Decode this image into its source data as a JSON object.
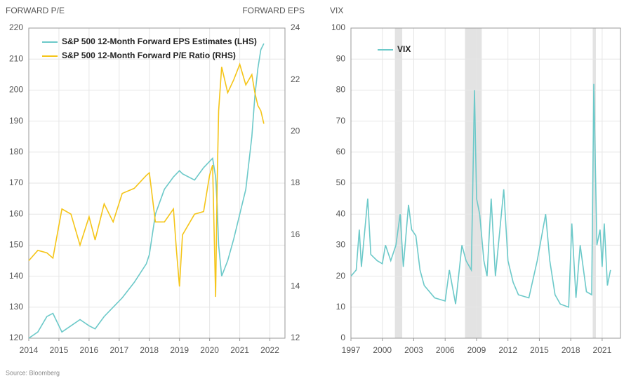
{
  "source": "Source: Bloomberg",
  "chart_data": [
    {
      "type": "line",
      "y_label": "FORWARD P/E",
      "y2_label": "FORWARD EPS",
      "grid": true,
      "legend": "upper left",
      "x": [
        2014,
        2014.3,
        2014.6,
        2014.8,
        2015.1,
        2015.4,
        2015.7,
        2016.0,
        2016.2,
        2016.5,
        2016.8,
        2017.1,
        2017.5,
        2017.9,
        2018.0,
        2018.2,
        2018.5,
        2018.8,
        2018.9,
        2019.0,
        2019.1,
        2019.5,
        2019.8,
        2020.0,
        2020.1,
        2020.2,
        2020.25,
        2020.3,
        2020.4,
        2020.6,
        2020.8,
        2021.0,
        2021.2,
        2021.4,
        2021.5,
        2021.6,
        2021.7,
        2021.8
      ],
      "series": [
        {
          "name": "S&P 500 12-Month Forward EPS Estimates (LHS)",
          "color": "#6cc9c9",
          "values": [
            120,
            122,
            127,
            128,
            122,
            124,
            126,
            124,
            123,
            127,
            130,
            133,
            138,
            144,
            147,
            160,
            168,
            172,
            173,
            174,
            173,
            171,
            175,
            177,
            178,
            172,
            163,
            150,
            140,
            145,
            152,
            160,
            168,
            185,
            198,
            207,
            213,
            215
          ]
        },
        {
          "name": "S&P 500 12-Month Forward P/E Ratio (RHS)",
          "color": "#f5c518",
          "axis": "y2",
          "values": [
            15.0,
            15.4,
            15.3,
            15.1,
            17.0,
            16.8,
            15.6,
            16.7,
            15.8,
            17.2,
            16.5,
            17.6,
            17.8,
            18.3,
            18.4,
            16.5,
            16.5,
            17.0,
            15.4,
            14.0,
            16.0,
            16.8,
            16.9,
            18.3,
            18.7,
            13.6,
            18.0,
            20.8,
            22.5,
            21.5,
            22.0,
            22.6,
            21.8,
            22.2,
            21.5,
            21.0,
            20.8,
            20.3
          ]
        }
      ],
      "xlim": [
        2014,
        2022.5
      ],
      "xticks": [
        2014,
        2015,
        2016,
        2017,
        2018,
        2019,
        2020,
        2021,
        2022
      ],
      "ylim": [
        120,
        220
      ],
      "yticks": [
        120,
        130,
        140,
        150,
        160,
        170,
        180,
        190,
        200,
        210,
        220
      ],
      "y2lim": [
        12,
        24
      ],
      "y2ticks": [
        12,
        14,
        16,
        18,
        20,
        22,
        24
      ]
    },
    {
      "type": "line",
      "y_label": "VIX",
      "grid": true,
      "legend": "upper left",
      "shaded_ranges": [
        [
          2001.2,
          2001.9
        ],
        [
          2007.9,
          2009.5
        ],
        [
          2020.1,
          2020.4
        ]
      ],
      "shade_color": "#e3e3e3",
      "x": [
        1997,
        1997.5,
        1997.8,
        1998.0,
        1998.6,
        1998.9,
        1999.5,
        2000.0,
        2000.3,
        2000.8,
        2001.3,
        2001.7,
        2002.0,
        2002.5,
        2002.8,
        2003.2,
        2003.6,
        2004,
        2005,
        2006,
        2006.4,
        2007,
        2007.6,
        2008,
        2008.5,
        2008.8,
        2009.0,
        2009.3,
        2009.7,
        2010.0,
        2010.4,
        2010.8,
        2011.6,
        2012,
        2012.5,
        2013,
        2014,
        2014.8,
        2015.6,
        2016,
        2016.5,
        2017,
        2017.8,
        2018.1,
        2018.5,
        2018.9,
        2019.5,
        2020.0,
        2020.2,
        2020.5,
        2020.8,
        2021.0,
        2021.2,
        2021.5,
        2021.8
      ],
      "series": [
        {
          "name": "VIX",
          "color": "#6cc9c9",
          "values": [
            20,
            22,
            35,
            23,
            45,
            27,
            25,
            24,
            30,
            25,
            30,
            40,
            23,
            43,
            35,
            33,
            22,
            17,
            13,
            12,
            22,
            11,
            30,
            25,
            22,
            80,
            45,
            40,
            25,
            20,
            45,
            20,
            48,
            25,
            18,
            14,
            13,
            25,
            40,
            25,
            14,
            11,
            10,
            37,
            13,
            30,
            15,
            14,
            82,
            30,
            35,
            23,
            37,
            17,
            22
          ]
        }
      ],
      "xlim": [
        1997,
        2022.75
      ],
      "xticks": [
        1997,
        2000,
        2003,
        2006,
        2009,
        2012,
        2015,
        2018,
        2021
      ],
      "ylim": [
        0,
        100
      ],
      "yticks": [
        0,
        10,
        20,
        30,
        40,
        50,
        60,
        70,
        80,
        90,
        100
      ]
    }
  ]
}
